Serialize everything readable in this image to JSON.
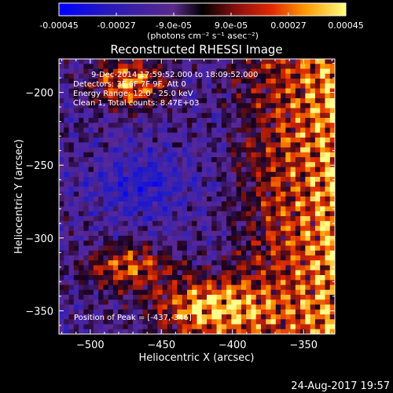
{
  "colorbar": {
    "tick_labels": [
      "-0.00045",
      "-0.00027",
      "-9.0e-05",
      "9.0e-05",
      "0.00027",
      "0.00045"
    ],
    "tick_values": [
      -0.00045,
      -0.00027,
      -9e-05,
      9e-05,
      0.00027,
      0.00045
    ],
    "range": [
      -0.00045,
      0.00045
    ],
    "units_label": "(photons cm⁻² s⁻¹ asec⁻²)"
  },
  "chart_data": {
    "type": "heatmap",
    "title": "Reconstructed RHESSI Image",
    "xlabel": "Heliocentric X (arcsec)",
    "ylabel": "Heliocentric Y (arcsec)",
    "xlim": [
      -522,
      -328
    ],
    "ylim": [
      -366,
      -177
    ],
    "x_ticks": [
      -500,
      -450,
      -400,
      -350
    ],
    "y_ticks": [
      -200,
      -250,
      -300,
      -350
    ],
    "x_tick_labels": [
      "−500",
      "−450",
      "−400",
      "−350"
    ],
    "y_tick_labels": [
      "−200",
      "−250",
      "−300",
      "−350"
    ],
    "colormap": "rainbow",
    "peak_position": [
      -437,
      -346
    ],
    "annotations": [
      "9-Dec-2014 17:59:52.000 to 18:09:52.000",
      "Detectors: 3F 6F 7F 9F, Att 0",
      "Energy Range: 12.0 - 25.0 keV",
      "Clean 1, Total counts: 8.47E+03",
      "Position of Peak = [-437,-346]"
    ]
  },
  "footer": {
    "date_label": "24-Aug-2017 19:57"
  },
  "colors": {
    "background": "#000000",
    "foreground": "#ffffff"
  }
}
